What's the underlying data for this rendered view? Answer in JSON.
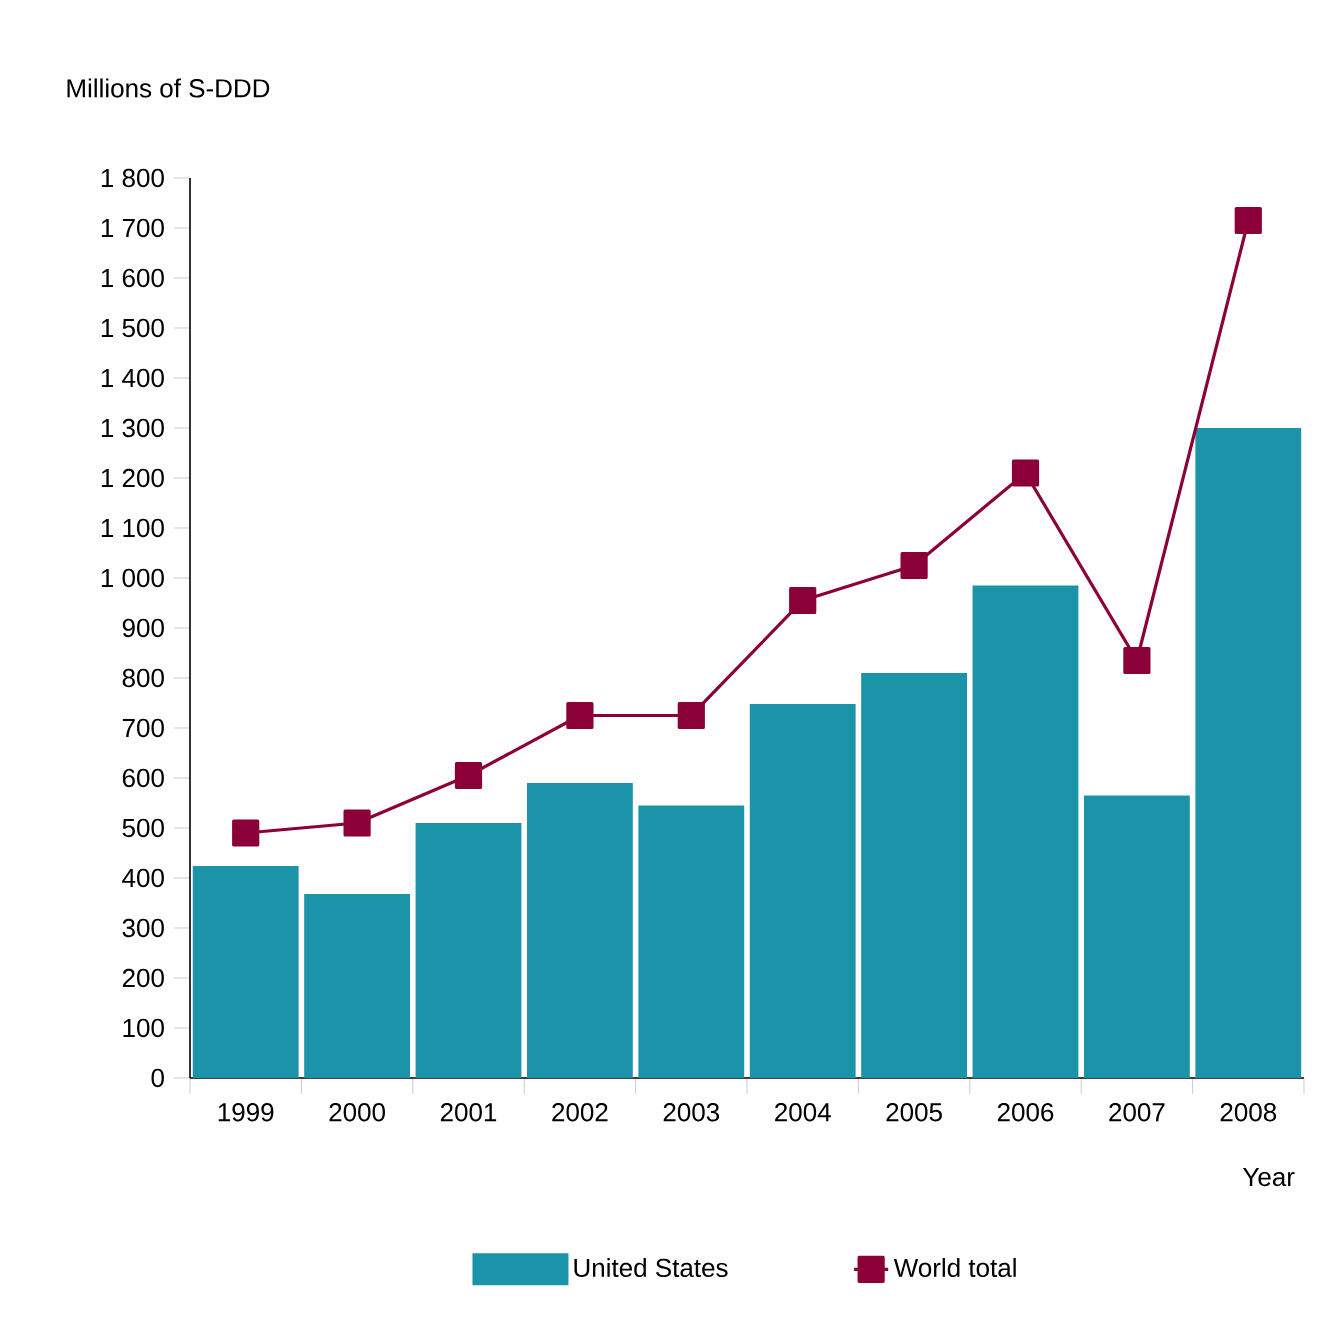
{
  "chart_data": {
    "type": "bar",
    "ylabel": "Millions of S-DDD",
    "xlabel": "Year",
    "categories": [
      "1999",
      "2000",
      "2001",
      "2002",
      "2003",
      "2004",
      "2005",
      "2006",
      "2007",
      "2008"
    ],
    "series": [
      {
        "name": "United States",
        "color": "#1b93a8",
        "values": [
          424,
          368,
          510,
          590,
          545,
          748,
          810,
          985,
          565,
          1300
        ]
      },
      {
        "name": "World total",
        "type": "line",
        "color": "#8b0038",
        "marker": "square",
        "values": [
          490,
          510,
          605,
          725,
          725,
          955,
          1025,
          1210,
          835,
          1715
        ]
      }
    ],
    "ylim": [
      0,
      1800
    ],
    "yticks": [
      0,
      100,
      200,
      300,
      400,
      500,
      600,
      700,
      800,
      900,
      {
        "value": 1000,
        "label": "1 000"
      },
      {
        "value": 1100,
        "label": "1 100"
      },
      {
        "value": 1200,
        "label": "1 200"
      },
      {
        "value": 1300,
        "label": "1 300"
      },
      {
        "value": 1400,
        "label": "1 400"
      },
      {
        "value": 1500,
        "label": "1 500"
      },
      {
        "value": 1600,
        "label": "1 600"
      },
      {
        "value": 1700,
        "label": "1 700"
      },
      {
        "value": 1800,
        "label": "1 800"
      }
    ],
    "grid": false,
    "legend": "bottom"
  }
}
